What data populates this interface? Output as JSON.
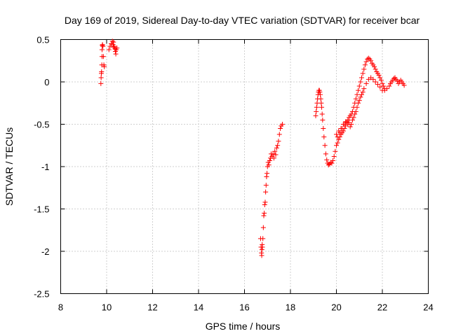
{
  "chart_data": {
    "type": "scatter",
    "title": "Day 169 of 2019, Sidereal Day-to-day VTEC variation (SDTVAR) for receiver bcar",
    "xlabel": "GPS time / hours",
    "ylabel": "SDTVAR / TECUs",
    "xlim": [
      8,
      24
    ],
    "ylim": [
      -2.5,
      0.5
    ],
    "x_ticks": [
      "8",
      "10",
      "12",
      "14",
      "16",
      "18",
      "20",
      "22",
      "24"
    ],
    "y_ticks": [
      "0.5",
      "0",
      "-0.5",
      "-1",
      "-1.5",
      "-2",
      "-2.5"
    ],
    "grid": true,
    "marker": "+",
    "color": "#ff0000",
    "series": [
      {
        "name": "SDTVAR",
        "points": [
          [
            9.75,
            -0.02
          ],
          [
            9.76,
            0.05
          ],
          [
            9.77,
            0.1
          ],
          [
            9.78,
            0.12
          ],
          [
            9.79,
            0.2
          ],
          [
            9.8,
            0.3
          ],
          [
            9.8,
            0.38
          ],
          [
            9.81,
            0.43
          ],
          [
            9.82,
            0.44
          ],
          [
            9.84,
            0.42
          ],
          [
            9.86,
            0.3
          ],
          [
            9.88,
            0.2
          ],
          [
            9.9,
            0.18
          ],
          [
            10.1,
            0.38
          ],
          [
            10.15,
            0.42
          ],
          [
            10.2,
            0.45
          ],
          [
            10.25,
            0.48
          ],
          [
            10.28,
            0.44
          ],
          [
            10.3,
            0.47
          ],
          [
            10.33,
            0.42
          ],
          [
            10.36,
            0.39
          ],
          [
            10.38,
            0.36
          ],
          [
            10.4,
            0.33
          ],
          [
            10.42,
            0.38
          ],
          [
            10.45,
            0.4
          ],
          [
            10.3,
            0.41
          ],
          [
            16.7,
            -1.85
          ],
          [
            16.72,
            -1.95
          ],
          [
            16.74,
            -2.02
          ],
          [
            16.75,
            -2.05
          ],
          [
            16.76,
            -1.98
          ],
          [
            16.77,
            -1.92
          ],
          [
            16.78,
            -1.95
          ],
          [
            16.8,
            -1.85
          ],
          [
            16.82,
            -1.72
          ],
          [
            16.84,
            -1.58
          ],
          [
            16.86,
            -1.55
          ],
          [
            16.88,
            -1.45
          ],
          [
            16.9,
            -1.42
          ],
          [
            16.92,
            -1.3
          ],
          [
            16.94,
            -1.22
          ],
          [
            16.96,
            -1.12
          ],
          [
            16.98,
            -1.08
          ],
          [
            17.0,
            -1.0
          ],
          [
            17.03,
            -0.95
          ],
          [
            17.06,
            -0.98
          ],
          [
            17.1,
            -0.93
          ],
          [
            17.13,
            -0.9
          ],
          [
            17.16,
            -0.85
          ],
          [
            17.2,
            -0.88
          ],
          [
            17.24,
            -0.85
          ],
          [
            17.28,
            -0.9
          ],
          [
            17.32,
            -0.82
          ],
          [
            17.36,
            -0.86
          ],
          [
            17.4,
            -0.78
          ],
          [
            17.44,
            -0.75
          ],
          [
            17.48,
            -0.7
          ],
          [
            17.52,
            -0.62
          ],
          [
            17.56,
            -0.55
          ],
          [
            17.6,
            -0.52
          ],
          [
            17.65,
            -0.5
          ],
          [
            19.1,
            -0.4
          ],
          [
            19.12,
            -0.35
          ],
          [
            19.14,
            -0.3
          ],
          [
            19.16,
            -0.25
          ],
          [
            19.18,
            -0.2
          ],
          [
            19.2,
            -0.15
          ],
          [
            19.22,
            -0.12
          ],
          [
            19.24,
            -0.1
          ],
          [
            19.26,
            -0.1
          ],
          [
            19.28,
            -0.12
          ],
          [
            19.3,
            -0.15
          ],
          [
            19.32,
            -0.2
          ],
          [
            19.34,
            -0.25
          ],
          [
            19.36,
            -0.3
          ],
          [
            19.38,
            -0.38
          ],
          [
            19.4,
            -0.45
          ],
          [
            19.43,
            -0.55
          ],
          [
            19.46,
            -0.65
          ],
          [
            19.5,
            -0.75
          ],
          [
            19.54,
            -0.85
          ],
          [
            19.58,
            -0.92
          ],
          [
            19.62,
            -0.96
          ],
          [
            19.66,
            -0.98
          ],
          [
            19.7,
            -0.97
          ],
          [
            19.75,
            -0.95
          ],
          [
            19.8,
            -0.96
          ],
          [
            19.85,
            -0.93
          ],
          [
            19.9,
            -0.88
          ],
          [
            19.95,
            -0.82
          ],
          [
            20.0,
            -0.75
          ],
          [
            20.05,
            -0.72
          ],
          [
            20.1,
            -0.68
          ],
          [
            20.15,
            -0.65
          ],
          [
            20.2,
            -0.62
          ],
          [
            20.25,
            -0.6
          ],
          [
            20.3,
            -0.58
          ],
          [
            20.35,
            -0.55
          ],
          [
            20.4,
            -0.52
          ],
          [
            20.45,
            -0.48
          ],
          [
            20.5,
            -0.45
          ],
          [
            20.55,
            -0.42
          ],
          [
            20.6,
            -0.4
          ],
          [
            20.65,
            -0.38
          ],
          [
            20.7,
            -0.35
          ],
          [
            20.75,
            -0.3
          ],
          [
            20.8,
            -0.25
          ],
          [
            20.85,
            -0.2
          ],
          [
            20.9,
            -0.15
          ],
          [
            20.95,
            -0.1
          ],
          [
            21.0,
            -0.05
          ],
          [
            21.05,
            0.0
          ],
          [
            21.1,
            0.05
          ],
          [
            21.15,
            0.1
          ],
          [
            21.2,
            0.15
          ],
          [
            21.25,
            0.2
          ],
          [
            21.3,
            0.24
          ],
          [
            21.35,
            0.27
          ],
          [
            21.4,
            0.28
          ],
          [
            21.45,
            0.27
          ],
          [
            21.5,
            0.25
          ],
          [
            21.55,
            0.22
          ],
          [
            21.6,
            0.2
          ],
          [
            21.65,
            0.18
          ],
          [
            21.7,
            0.15
          ],
          [
            21.75,
            0.12
          ],
          [
            21.8,
            0.1
          ],
          [
            21.85,
            0.08
          ],
          [
            21.9,
            0.05
          ],
          [
            21.95,
            0.02
          ],
          [
            22.0,
            -0.02
          ],
          [
            22.05,
            -0.05
          ],
          [
            22.1,
            -0.08
          ],
          [
            20.0,
            -0.62
          ],
          [
            20.1,
            -0.58
          ],
          [
            20.2,
            -0.55
          ],
          [
            20.3,
            -0.5
          ],
          [
            20.4,
            -0.47
          ],
          [
            20.5,
            -0.5
          ],
          [
            20.6,
            -0.53
          ],
          [
            20.7,
            -0.45
          ],
          [
            20.8,
            -0.38
          ],
          [
            20.9,
            -0.3
          ],
          [
            21.0,
            -0.22
          ],
          [
            21.1,
            -0.15
          ],
          [
            21.2,
            -0.08
          ],
          [
            21.3,
            -0.02
          ],
          [
            21.4,
            0.03
          ],
          [
            21.5,
            0.05
          ],
          [
            21.6,
            0.03
          ],
          [
            21.7,
            0.0
          ],
          [
            21.8,
            -0.03
          ],
          [
            21.9,
            -0.06
          ],
          [
            22.0,
            -0.1
          ],
          [
            22.1,
            -0.1
          ],
          [
            22.2,
            -0.08
          ],
          [
            22.3,
            -0.05
          ],
          [
            22.35,
            -0.02
          ],
          [
            22.4,
            0.0
          ],
          [
            22.45,
            0.02
          ],
          [
            22.5,
            0.04
          ],
          [
            22.55,
            0.05
          ],
          [
            22.6,
            0.03
          ],
          [
            22.65,
            0.01
          ],
          [
            22.7,
            -0.02
          ],
          [
            22.75,
            0.0
          ],
          [
            22.8,
            0.02
          ],
          [
            22.85,
            0.0
          ],
          [
            22.9,
            -0.02
          ],
          [
            22.95,
            -0.04
          ],
          [
            20.05,
            -0.65
          ],
          [
            20.15,
            -0.6
          ],
          [
            20.25,
            -0.55
          ],
          [
            20.35,
            -0.5
          ],
          [
            20.45,
            -0.47
          ],
          [
            20.55,
            -0.48
          ],
          [
            20.65,
            -0.5
          ],
          [
            20.75,
            -0.42
          ],
          [
            20.85,
            -0.35
          ],
          [
            20.95,
            -0.25
          ],
          [
            21.05,
            -0.18
          ],
          [
            21.15,
            -0.12
          ]
        ]
      }
    ]
  }
}
